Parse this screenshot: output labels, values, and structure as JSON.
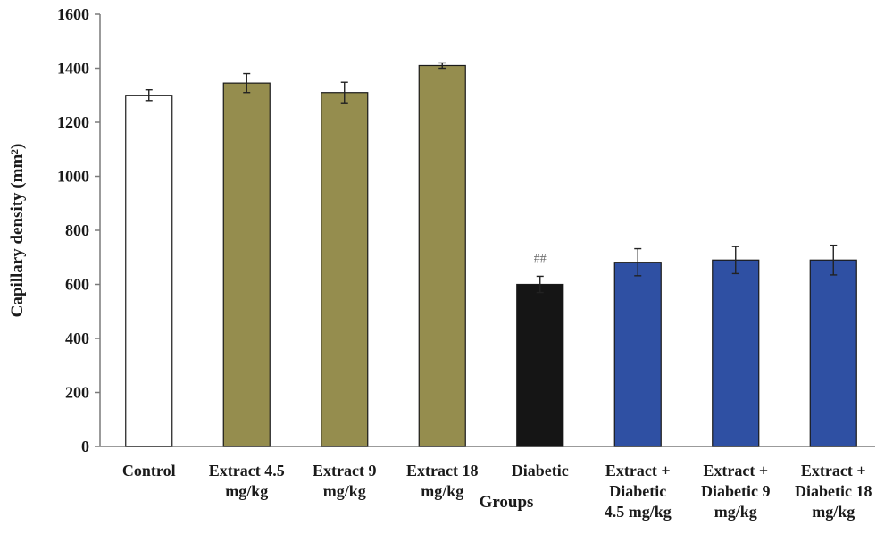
{
  "chart_data": {
    "type": "bar",
    "title": "",
    "xlabel": "Groups",
    "ylabel": "Capillary density (mm²)",
    "ylim": [
      0,
      1600
    ],
    "yticks": [
      0,
      200,
      400,
      600,
      800,
      1000,
      1200,
      1400,
      1600
    ],
    "grid": false,
    "legend": "none",
    "categories": [
      [
        "Control"
      ],
      [
        "Extract  4.5",
        "mg/kg"
      ],
      [
        "Extract  9",
        "mg/kg"
      ],
      [
        "Extract  18",
        "mg/kg"
      ],
      [
        "Diabetic"
      ],
      [
        "Extract  +",
        "Diabetic",
        "4.5 mg/kg"
      ],
      [
        "Extract  +",
        "Diabetic 9",
        "mg/kg"
      ],
      [
        "Extract  +",
        "Diabetic 18",
        "mg/kg"
      ]
    ],
    "values": [
      1300,
      1345,
      1310,
      1410,
      600,
      682,
      690,
      690
    ],
    "errors": [
      20,
      35,
      38,
      10,
      30,
      50,
      50,
      55
    ],
    "colors": [
      "#ffffff",
      "#958d4e",
      "#958d4e",
      "#958d4e",
      "#151515",
      "#2f50a3",
      "#2f50a3",
      "#2f50a3"
    ],
    "annotations": [
      {
        "category_index": 4,
        "text": "##"
      }
    ]
  }
}
